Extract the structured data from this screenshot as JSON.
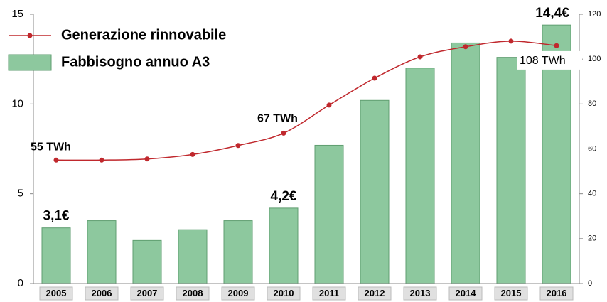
{
  "chart_data": {
    "type": "bar_line",
    "categories": [
      "2005",
      "2006",
      "2007",
      "2008",
      "2009",
      "2010",
      "2011",
      "2012",
      "2013",
      "2014",
      "2015",
      "2016"
    ],
    "series": [
      {
        "name": "Generazione rinnovabile",
        "type": "line",
        "axis": "y2",
        "color": "#c0282d",
        "values": [
          55,
          55,
          55.5,
          57.5,
          61.5,
          67,
          79.5,
          91.5,
          101,
          105.5,
          108,
          106
        ],
        "value_labels": [
          "55 TWh",
          null,
          null,
          null,
          null,
          "67 TWh",
          null,
          null,
          null,
          null,
          "108 TWh",
          null
        ]
      },
      {
        "name": "Fabbisogno annuo A3",
        "type": "bar",
        "color": "#8dc89e",
        "values": [
          3.1,
          3.5,
          2.4,
          3.0,
          3.5,
          4.2,
          7.7,
          10.2,
          12.0,
          13.4,
          12.6,
          14.4
        ],
        "value_labels": [
          "3,1€",
          null,
          null,
          null,
          null,
          "4,2€",
          null,
          null,
          null,
          null,
          null,
          "14,4€"
        ]
      }
    ],
    "ylim": [
      0,
      15
    ],
    "yticks": [
      0,
      5,
      10,
      15
    ],
    "y2lim": [
      0,
      120
    ],
    "y2ticks": [
      0,
      20,
      40,
      60,
      80,
      100,
      120
    ],
    "legend": "upper left"
  }
}
